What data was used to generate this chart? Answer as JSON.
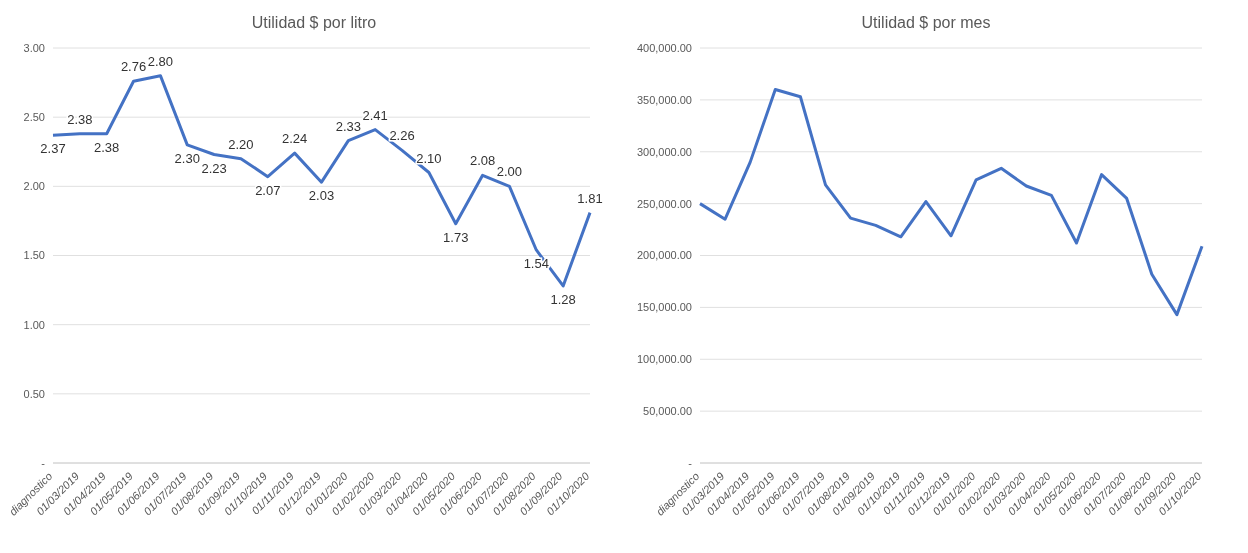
{
  "chart_data": [
    {
      "type": "line",
      "title": "Utilidad $ por litro",
      "categories": [
        "diagnostico",
        "01/03/2019",
        "01/04/2019",
        "01/05/2019",
        "01/06/2019",
        "01/07/2019",
        "01/08/2019",
        "01/09/2019",
        "01/10/2019",
        "01/11/2019",
        "01/12/2019",
        "01/01/2020",
        "01/02/2020",
        "01/03/2020",
        "01/04/2020",
        "01/05/2020",
        "01/06/2020",
        "01/07/2020",
        "01/08/2020",
        "01/09/2020",
        "01/10/2020"
      ],
      "values": [
        2.37,
        2.38,
        2.38,
        2.76,
        2.8,
        2.3,
        2.23,
        2.2,
        2.07,
        2.24,
        2.03,
        2.33,
        2.41,
        2.26,
        2.1,
        1.73,
        2.08,
        2.0,
        1.54,
        1.28,
        1.81
      ],
      "color": "#4472c4",
      "ylim": [
        0,
        3
      ],
      "yticks": [
        {
          "value": 0,
          "label": "-"
        },
        {
          "value": 0.5,
          "label": "0.50"
        },
        {
          "value": 1,
          "label": "1.00"
        },
        {
          "value": 1.5,
          "label": "1.50"
        },
        {
          "value": 2,
          "label": "2.00"
        },
        {
          "value": 2.5,
          "label": "2.50"
        },
        {
          "value": 3,
          "label": "3.00"
        }
      ],
      "grid": "y",
      "marker": "none",
      "value_labels": [
        "2.37",
        "2.38",
        "2.38",
        "2.76",
        "2.80",
        "2.30",
        "2.23",
        "2.20",
        "2.07",
        "2.24",
        "2.03",
        "2.33",
        "2.41",
        "2.26",
        "2.10",
        "1.73",
        "2.08",
        "2.00",
        "1.54",
        "1.28",
        "1.81"
      ]
    },
    {
      "type": "line",
      "title": "Utilidad $ por mes",
      "categories": [
        "diagnostico",
        "01/03/2019",
        "01/04/2019",
        "01/05/2019",
        "01/06/2019",
        "01/07/2019",
        "01/08/2019",
        "01/09/2019",
        "01/10/2019",
        "01/11/2019",
        "01/12/2019",
        "01/01/2020",
        "01/02/2020",
        "01/03/2020",
        "01/04/2020",
        "01/05/2020",
        "01/06/2020",
        "01/07/2020",
        "01/08/2020",
        "01/09/2020",
        "01/10/2020"
      ],
      "values": [
        250000,
        235000,
        290000,
        360000,
        353000,
        268000,
        236000,
        229000,
        218000,
        252000,
        219000,
        273000,
        284000,
        267000,
        258000,
        212000,
        278000,
        255000,
        182000,
        143000,
        209000
      ],
      "color": "#4472c4",
      "ylim": [
        0,
        400000
      ],
      "yticks": [
        {
          "value": 0,
          "label": "-"
        },
        {
          "value": 50000,
          "label": "50,000.00"
        },
        {
          "value": 100000,
          "label": "100,000.00"
        },
        {
          "value": 150000,
          "label": "150,000.00"
        },
        {
          "value": 200000,
          "label": "200,000.00"
        },
        {
          "value": 250000,
          "label": "250,000.00"
        },
        {
          "value": 300000,
          "label": "300,000.00"
        },
        {
          "value": 350000,
          "label": "350,000.00"
        },
        {
          "value": 400000,
          "label": "400,000.00"
        }
      ],
      "grid": "y",
      "marker": "none"
    }
  ]
}
